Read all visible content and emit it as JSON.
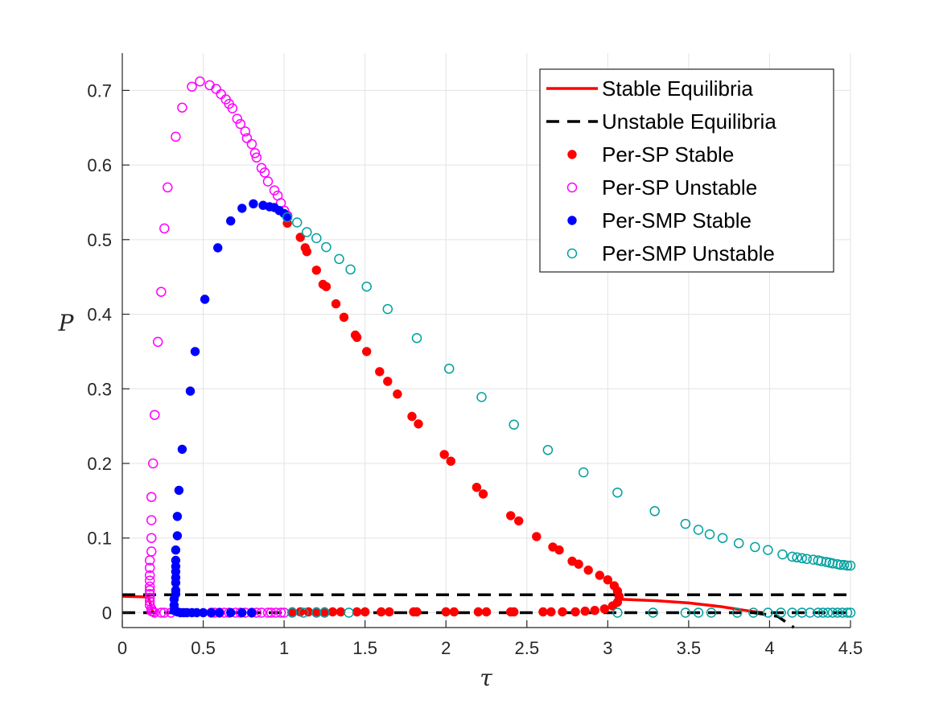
{
  "chart_data": {
    "type": "scatter",
    "title": "",
    "xlabel": "τ",
    "ylabel": "P",
    "xlim": [
      0,
      4.5
    ],
    "ylim": [
      -0.02,
      0.75
    ],
    "xticks": [
      0,
      0.5,
      1,
      1.5,
      2,
      2.5,
      3,
      3.5,
      4,
      4.5
    ],
    "xtick_labels": [
      "0",
      "0.5",
      "1",
      "1.5",
      "2",
      "2.5",
      "3",
      "3.5",
      "4",
      "4.5"
    ],
    "yticks": [
      0,
      0.1,
      0.2,
      0.3,
      0.4,
      0.5,
      0.6,
      0.7
    ],
    "ytick_labels": [
      "0",
      "0.1",
      "0.2",
      "0.3",
      "0.4",
      "0.5",
      "0.6",
      "0.7"
    ],
    "grid": true,
    "legend_position": "top-right",
    "colors": {
      "stable_eq": "#ff0000",
      "unstable_eq": "#000000",
      "sp_stable": "#ff0000",
      "sp_unstable": "#ff00ff",
      "smp_stable": "#0000ff",
      "smp_unstable": "#00a0a0"
    },
    "series": [
      {
        "name": "Stable Equilibria",
        "style": "solid-line",
        "color": "#ff0000",
        "segments": [
          [
            [
              0,
              0.022
            ],
            [
              0.16,
              0.021
            ],
            [
              0.19,
              0.0
            ]
          ],
          [
            [
              3.07,
              0.018
            ],
            [
              3.3,
              0.016
            ],
            [
              3.5,
              0.013
            ],
            [
              3.7,
              0.008
            ],
            [
              3.85,
              0.003
            ],
            [
              3.95,
              0.0
            ]
          ]
        ]
      },
      {
        "name": "Unstable Equilibria",
        "style": "dashed-line",
        "color": "#000000",
        "segments": [
          [
            [
              0,
              0.0
            ],
            [
              4.5,
              0.0
            ]
          ],
          [
            [
              0,
              0.024
            ],
            [
              4.5,
              0.024
            ]
          ],
          [
            [
              3.9,
              0.0
            ],
            [
              4.05,
              -0.005
            ],
            [
              4.15,
              -0.02
            ]
          ]
        ]
      },
      {
        "name": "Per-SP Stable",
        "style": "filled-marker",
        "color": "#ff0000",
        "points": [
          [
            1.02,
            0.522
          ],
          [
            1.1,
            0.503
          ],
          [
            1.13,
            0.489
          ],
          [
            1.14,
            0.484
          ],
          [
            1.2,
            0.459
          ],
          [
            1.24,
            0.44
          ],
          [
            1.26,
            0.437
          ],
          [
            1.32,
            0.414
          ],
          [
            1.37,
            0.396
          ],
          [
            1.44,
            0.372
          ],
          [
            1.45,
            0.369
          ],
          [
            1.51,
            0.35
          ],
          [
            1.59,
            0.323
          ],
          [
            1.64,
            0.31
          ],
          [
            1.7,
            0.293
          ],
          [
            1.79,
            0.263
          ],
          [
            1.83,
            0.253
          ],
          [
            1.99,
            0.212
          ],
          [
            2.03,
            0.203
          ],
          [
            2.19,
            0.168
          ],
          [
            2.23,
            0.159
          ],
          [
            2.4,
            0.13
          ],
          [
            2.45,
            0.123
          ],
          [
            2.56,
            0.102
          ],
          [
            2.66,
            0.088
          ],
          [
            2.7,
            0.084
          ],
          [
            2.78,
            0.069
          ],
          [
            2.82,
            0.065
          ],
          [
            2.88,
            0.057
          ],
          [
            2.95,
            0.05
          ],
          [
            3.0,
            0.044
          ],
          [
            3.04,
            0.036
          ],
          [
            3.06,
            0.029
          ],
          [
            3.07,
            0.022
          ],
          [
            3.06,
            0.014
          ],
          [
            3.03,
            0.009
          ],
          [
            2.98,
            0.005
          ],
          [
            2.92,
            0.003
          ],
          [
            2.86,
            0.002
          ],
          [
            2.8,
            0.001
          ],
          [
            2.72,
            0.001
          ],
          [
            1.05,
            0.001
          ],
          [
            1.1,
            0.001
          ],
          [
            1.15,
            0.001
          ],
          [
            1.2,
            0.001
          ],
          [
            1.25,
            0.001
          ],
          [
            1.3,
            0.001
          ],
          [
            1.35,
            0.001
          ],
          [
            1.45,
            0.001
          ],
          [
            1.5,
            0.001
          ],
          [
            1.6,
            0.001
          ],
          [
            1.65,
            0.001
          ],
          [
            1.8,
            0.001
          ],
          [
            1.82,
            0.001
          ],
          [
            2.0,
            0.001
          ],
          [
            2.05,
            0.001
          ],
          [
            2.2,
            0.001
          ],
          [
            2.25,
            0.001
          ],
          [
            2.4,
            0.001
          ],
          [
            2.42,
            0.001
          ],
          [
            2.6,
            0.001
          ],
          [
            2.65,
            0.001
          ]
        ]
      },
      {
        "name": "Per-SP Unstable",
        "style": "open-marker",
        "color": "#ff00ff",
        "points": [
          [
            0.17,
            0.035
          ],
          [
            0.17,
            0.043
          ],
          [
            0.17,
            0.05
          ],
          [
            0.17,
            0.06
          ],
          [
            0.17,
            0.07
          ],
          [
            0.18,
            0.082
          ],
          [
            0.18,
            0.1
          ],
          [
            0.18,
            0.124
          ],
          [
            0.18,
            0.155
          ],
          [
            0.19,
            0.2
          ],
          [
            0.2,
            0.265
          ],
          [
            0.22,
            0.363
          ],
          [
            0.24,
            0.43
          ],
          [
            0.26,
            0.515
          ],
          [
            0.28,
            0.57
          ],
          [
            0.33,
            0.638
          ],
          [
            0.37,
            0.677
          ],
          [
            0.43,
            0.705
          ],
          [
            0.48,
            0.712
          ],
          [
            0.54,
            0.707
          ],
          [
            0.58,
            0.702
          ],
          [
            0.61,
            0.695
          ],
          [
            0.64,
            0.688
          ],
          [
            0.66,
            0.682
          ],
          [
            0.68,
            0.676
          ],
          [
            0.71,
            0.662
          ],
          [
            0.73,
            0.655
          ],
          [
            0.76,
            0.645
          ],
          [
            0.77,
            0.636
          ],
          [
            0.8,
            0.628
          ],
          [
            0.82,
            0.616
          ],
          [
            0.83,
            0.61
          ],
          [
            0.86,
            0.596
          ],
          [
            0.88,
            0.59
          ],
          [
            0.9,
            0.578
          ],
          [
            0.94,
            0.566
          ],
          [
            0.96,
            0.559
          ],
          [
            0.98,
            0.549
          ],
          [
            1.0,
            0.539
          ],
          [
            1.02,
            0.532
          ],
          [
            0.17,
            0.03
          ],
          [
            0.17,
            0.025
          ],
          [
            0.17,
            0.02
          ],
          [
            0.17,
            0.015
          ],
          [
            0.17,
            0.01
          ],
          [
            0.18,
            0.005
          ],
          [
            0.18,
            0.002
          ],
          [
            0.19,
            0.001
          ],
          [
            0.2,
            0.0
          ],
          [
            0.24,
            0.0
          ],
          [
            0.26,
            0.0
          ],
          [
            0.3,
            0.0
          ],
          [
            0.55,
            0.0
          ],
          [
            0.57,
            0.0
          ],
          [
            0.6,
            0.0
          ],
          [
            0.63,
            0.0
          ],
          [
            0.66,
            0.0
          ],
          [
            0.7,
            0.0
          ],
          [
            0.73,
            0.0
          ],
          [
            0.76,
            0.0
          ],
          [
            0.8,
            0.0
          ],
          [
            0.83,
            0.0
          ],
          [
            0.86,
            0.0
          ],
          [
            0.9,
            0.0
          ],
          [
            0.92,
            0.0
          ],
          [
            0.95,
            0.0
          ],
          [
            0.98,
            0.0
          ],
          [
            1.0,
            0.0
          ]
        ]
      },
      {
        "name": "Per-SMP Stable",
        "style": "filled-marker",
        "color": "#0000ff",
        "points": [
          [
            0.32,
            0.003
          ],
          [
            0.32,
            0.01
          ],
          [
            0.32,
            0.018
          ],
          [
            0.33,
            0.025
          ],
          [
            0.33,
            0.03
          ],
          [
            0.33,
            0.04
          ],
          [
            0.33,
            0.047
          ],
          [
            0.33,
            0.055
          ],
          [
            0.33,
            0.062
          ],
          [
            0.33,
            0.07
          ],
          [
            0.33,
            0.084
          ],
          [
            0.34,
            0.103
          ],
          [
            0.34,
            0.129
          ],
          [
            0.35,
            0.164
          ],
          [
            0.37,
            0.219
          ],
          [
            0.42,
            0.297
          ],
          [
            0.45,
            0.35
          ],
          [
            0.51,
            0.42
          ],
          [
            0.59,
            0.489
          ],
          [
            0.67,
            0.525
          ],
          [
            0.74,
            0.542
          ],
          [
            0.81,
            0.548
          ],
          [
            0.87,
            0.546
          ],
          [
            0.91,
            0.544
          ],
          [
            0.94,
            0.543
          ],
          [
            0.97,
            0.539
          ],
          [
            1.0,
            0.535
          ],
          [
            1.02,
            0.53
          ],
          [
            0.34,
            0.001
          ],
          [
            0.36,
            0.0
          ],
          [
            0.38,
            0.0
          ],
          [
            0.4,
            0.0
          ],
          [
            0.43,
            0.0
          ],
          [
            0.46,
            0.0
          ],
          [
            0.5,
            0.0
          ],
          [
            0.55,
            0.0
          ],
          [
            0.6,
            0.0
          ],
          [
            0.67,
            0.0
          ],
          [
            0.74,
            0.0
          ],
          [
            0.8,
            0.0
          ]
        ]
      },
      {
        "name": "Per-SMP Unstable",
        "style": "open-marker",
        "color": "#00a0a0",
        "points": [
          [
            1.02,
            0.53
          ],
          [
            1.08,
            0.523
          ],
          [
            1.14,
            0.51
          ],
          [
            1.2,
            0.502
          ],
          [
            1.26,
            0.49
          ],
          [
            1.34,
            0.474
          ],
          [
            1.41,
            0.46
          ],
          [
            1.51,
            0.437
          ],
          [
            1.64,
            0.407
          ],
          [
            1.82,
            0.368
          ],
          [
            2.02,
            0.327
          ],
          [
            2.22,
            0.289
          ],
          [
            2.42,
            0.252
          ],
          [
            2.63,
            0.218
          ],
          [
            2.85,
            0.188
          ],
          [
            3.06,
            0.161
          ],
          [
            3.29,
            0.136
          ],
          [
            3.48,
            0.119
          ],
          [
            3.56,
            0.111
          ],
          [
            3.63,
            0.105
          ],
          [
            3.71,
            0.1
          ],
          [
            3.81,
            0.093
          ],
          [
            3.91,
            0.088
          ],
          [
            3.99,
            0.084
          ],
          [
            4.08,
            0.078
          ],
          [
            4.14,
            0.075
          ],
          [
            4.17,
            0.074
          ],
          [
            4.2,
            0.073
          ],
          [
            4.23,
            0.072
          ],
          [
            4.27,
            0.071
          ],
          [
            4.3,
            0.07
          ],
          [
            4.32,
            0.069
          ],
          [
            4.35,
            0.068
          ],
          [
            4.37,
            0.067
          ],
          [
            4.39,
            0.066
          ],
          [
            4.42,
            0.065
          ],
          [
            4.44,
            0.064
          ],
          [
            4.46,
            0.064
          ],
          [
            4.48,
            0.063
          ],
          [
            4.5,
            0.063
          ],
          [
            1.05,
            0.0
          ],
          [
            1.12,
            0.0
          ],
          [
            1.2,
            0.0
          ],
          [
            1.25,
            0.0
          ],
          [
            1.4,
            0.0
          ],
          [
            3.06,
            0.0
          ],
          [
            3.28,
            0.0
          ],
          [
            3.48,
            0.0
          ],
          [
            3.56,
            0.0
          ],
          [
            3.64,
            0.0
          ],
          [
            3.8,
            0.0
          ],
          [
            3.9,
            0.0
          ],
          [
            3.99,
            0.0
          ],
          [
            4.07,
            0.0
          ],
          [
            4.14,
            0.0
          ],
          [
            4.2,
            0.0
          ],
          [
            4.25,
            0.0
          ],
          [
            4.3,
            0.0
          ],
          [
            4.33,
            0.0
          ],
          [
            4.36,
            0.0
          ],
          [
            4.39,
            0.0
          ],
          [
            4.42,
            0.0
          ],
          [
            4.45,
            0.0
          ],
          [
            4.48,
            0.0
          ],
          [
            4.5,
            0.0
          ]
        ]
      }
    ]
  }
}
